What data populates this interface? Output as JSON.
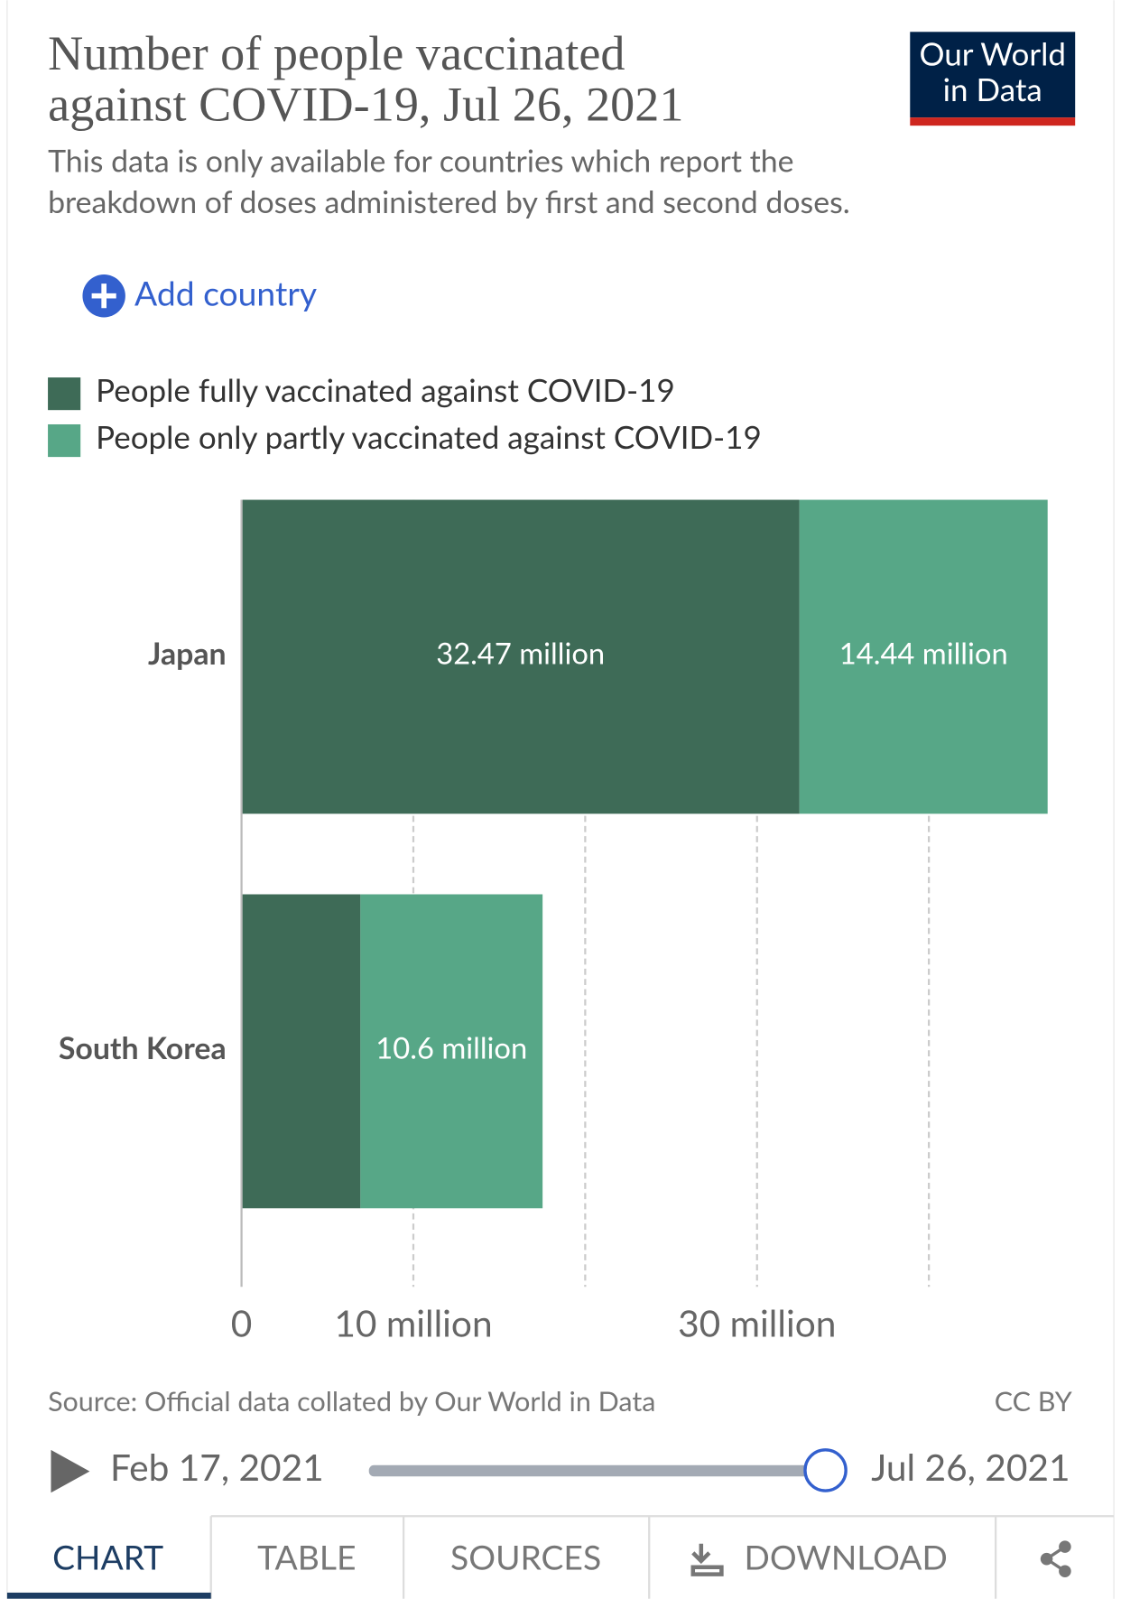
{
  "header": {
    "title_lines": [
      "Number of people vaccinated",
      "against COVID-19, Jul 26, 2021"
    ],
    "subtitle_lines": [
      "This data is only available for countries which report the",
      "breakdown of doses administered by first and second doses."
    ],
    "logo_lines": [
      "Our World",
      "in Data"
    ],
    "add_country": "Add country"
  },
  "chart_data": {
    "type": "stacked-hbar",
    "categories": [
      "Japan",
      "South Korea"
    ],
    "series": [
      {
        "name": "People fully vaccinated against COVID-19",
        "color": "#3e6b57",
        "values": [
          32.47,
          6.92
        ],
        "value_labels": [
          "32.47 million",
          null
        ]
      },
      {
        "name": "People only partly vaccinated against COVID-19",
        "color": "#57a787",
        "values": [
          14.44,
          10.6
        ],
        "value_labels": [
          "14.44 million",
          "10.6 million"
        ]
      }
    ],
    "xlim": [
      0,
      46.91
    ],
    "xticks": [
      0,
      {
        "value": 10,
        "label": "10 million"
      },
      {
        "value": 30,
        "label": "30 million"
      }
    ],
    "xgrid": [
      10,
      20,
      30,
      40
    ]
  },
  "footer": {
    "source": "Source: Official data collated by Our World in Data",
    "license": "CC BY",
    "timeline_start": "Feb 17, 2021",
    "timeline_end": "Jul 26, 2021",
    "tabs": [
      "CHART",
      "TABLE",
      "SOURCES",
      "DOWNLOAD"
    ]
  }
}
